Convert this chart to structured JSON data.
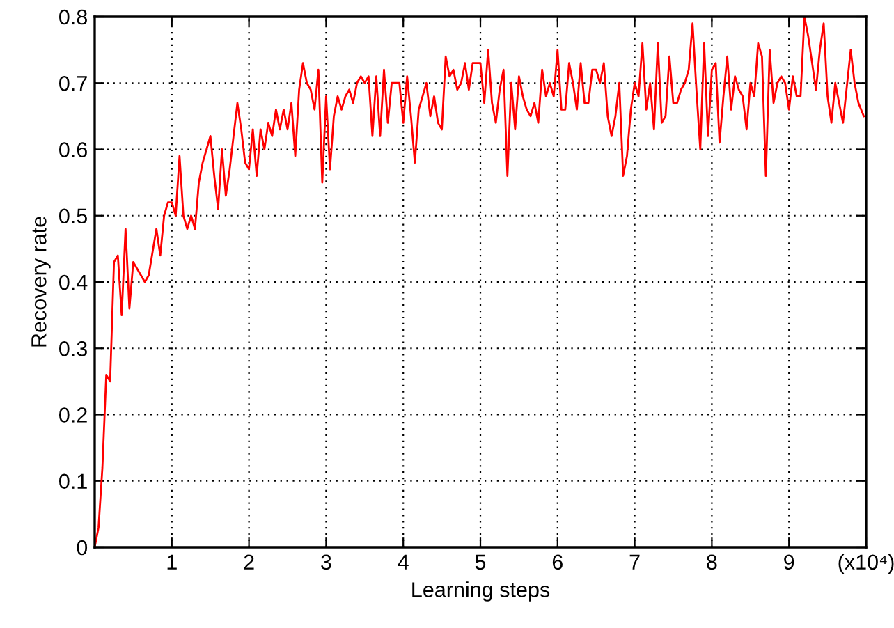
{
  "chart_data": {
    "type": "line",
    "xlabel": "Learning steps",
    "ylabel": "Recovery rate",
    "series": [
      {
        "color": "#ff0000",
        "x": [
          0,
          0.05,
          0.1,
          0.15,
          0.2,
          0.25,
          0.3,
          0.35,
          0.4,
          0.45,
          0.5,
          0.6,
          0.65,
          0.7,
          0.8,
          0.85,
          0.9,
          0.95,
          1.0,
          1.05,
          1.1,
          1.15,
          1.2,
          1.25,
          1.3,
          1.35,
          1.4,
          1.45,
          1.5,
          1.55,
          1.6,
          1.65,
          1.7,
          1.75,
          1.8,
          1.85,
          1.9,
          1.95,
          2.0,
          2.05,
          2.1,
          2.15,
          2.2,
          2.25,
          2.3,
          2.35,
          2.4,
          2.45,
          2.5,
          2.55,
          2.6,
          2.65,
          2.7,
          2.75,
          2.8,
          2.85,
          2.9,
          2.95,
          3.0,
          3.05,
          3.1,
          3.15,
          3.2,
          3.25,
          3.3,
          3.35,
          3.4,
          3.45,
          3.5,
          3.55,
          3.6,
          3.65,
          3.7,
          3.75,
          3.8,
          3.85,
          3.9,
          3.95,
          4.0,
          4.05,
          4.1,
          4.15,
          4.2,
          4.25,
          4.3,
          4.35,
          4.4,
          4.45,
          4.5,
          4.55,
          4.6,
          4.65,
          4.7,
          4.75,
          4.8,
          4.85,
          4.9,
          4.95,
          5.0,
          5.05,
          5.1,
          5.15,
          5.2,
          5.25,
          5.3,
          5.35,
          5.4,
          5.45,
          5.5,
          5.55,
          5.6,
          5.65,
          5.7,
          5.75,
          5.8,
          5.85,
          5.9,
          5.95,
          6.0,
          6.05,
          6.1,
          6.15,
          6.2,
          6.25,
          6.3,
          6.35,
          6.4,
          6.45,
          6.5,
          6.55,
          6.6,
          6.65,
          6.7,
          6.75,
          6.8,
          6.85,
          6.9,
          6.95,
          7.0,
          7.05,
          7.1,
          7.15,
          7.2,
          7.25,
          7.3,
          7.35,
          7.4,
          7.45,
          7.5,
          7.55,
          7.6,
          7.65,
          7.7,
          7.75,
          7.8,
          7.85,
          7.9,
          7.95,
          8.0,
          8.05,
          8.1,
          8.15,
          8.2,
          8.25,
          8.3,
          8.35,
          8.4,
          8.45,
          8.5,
          8.55,
          8.6,
          8.65,
          8.7,
          8.75,
          8.8,
          8.85,
          8.9,
          8.95,
          9.0,
          9.05,
          9.1,
          9.15,
          9.2,
          9.25,
          9.3,
          9.35,
          9.4,
          9.45,
          9.5,
          9.55,
          9.6,
          9.7,
          9.8,
          9.85,
          9.9,
          9.97
        ],
        "values": [
          0,
          0.03,
          0.12,
          0.26,
          0.25,
          0.43,
          0.44,
          0.35,
          0.48,
          0.36,
          0.43,
          0.41,
          0.4,
          0.41,
          0.48,
          0.44,
          0.5,
          0.52,
          0.52,
          0.5,
          0.59,
          0.5,
          0.48,
          0.5,
          0.48,
          0.55,
          0.58,
          0.6,
          0.62,
          0.56,
          0.51,
          0.6,
          0.53,
          0.57,
          0.62,
          0.67,
          0.63,
          0.58,
          0.57,
          0.63,
          0.56,
          0.63,
          0.6,
          0.64,
          0.62,
          0.66,
          0.63,
          0.66,
          0.63,
          0.67,
          0.59,
          0.69,
          0.73,
          0.7,
          0.69,
          0.66,
          0.72,
          0.55,
          0.68,
          0.57,
          0.65,
          0.68,
          0.66,
          0.68,
          0.69,
          0.67,
          0.7,
          0.71,
          0.7,
          0.71,
          0.62,
          0.71,
          0.62,
          0.72,
          0.64,
          0.7,
          0.7,
          0.7,
          0.64,
          0.71,
          0.65,
          0.58,
          0.66,
          0.68,
          0.7,
          0.65,
          0.68,
          0.64,
          0.63,
          0.74,
          0.71,
          0.72,
          0.69,
          0.7,
          0.73,
          0.69,
          0.73,
          0.73,
          0.73,
          0.67,
          0.75,
          0.67,
          0.64,
          0.69,
          0.72,
          0.56,
          0.7,
          0.63,
          0.71,
          0.68,
          0.66,
          0.65,
          0.67,
          0.64,
          0.72,
          0.68,
          0.7,
          0.68,
          0.75,
          0.66,
          0.66,
          0.73,
          0.7,
          0.66,
          0.73,
          0.67,
          0.67,
          0.72,
          0.72,
          0.7,
          0.73,
          0.65,
          0.62,
          0.65,
          0.7,
          0.56,
          0.59,
          0.66,
          0.7,
          0.68,
          0.76,
          0.66,
          0.7,
          0.63,
          0.76,
          0.64,
          0.65,
          0.74,
          0.67,
          0.67,
          0.69,
          0.7,
          0.72,
          0.79,
          0.69,
          0.6,
          0.76,
          0.62,
          0.72,
          0.73,
          0.61,
          0.68,
          0.74,
          0.66,
          0.71,
          0.69,
          0.68,
          0.63,
          0.7,
          0.68,
          0.76,
          0.74,
          0.56,
          0.75,
          0.67,
          0.7,
          0.71,
          0.7,
          0.66,
          0.71,
          0.68,
          0.68,
          0.8,
          0.77,
          0.73,
          0.69,
          0.75,
          0.79,
          0.68,
          0.64,
          0.7,
          0.64,
          0.75,
          0.7,
          0.67,
          0.65
        ]
      }
    ],
    "xlim": [
      0,
      10
    ],
    "xticks": [
      1,
      2,
      3,
      4,
      5,
      6,
      7,
      8,
      9,
      {
        "value": 10,
        "label": "(x10⁴)"
      }
    ],
    "ylim": [
      0,
      0.8
    ],
    "yticks": [
      0,
      0.1,
      0.2,
      0.3,
      0.4,
      0.5,
      0.6,
      0.7,
      0.8
    ],
    "grid": true,
    "line_style": "solid"
  }
}
